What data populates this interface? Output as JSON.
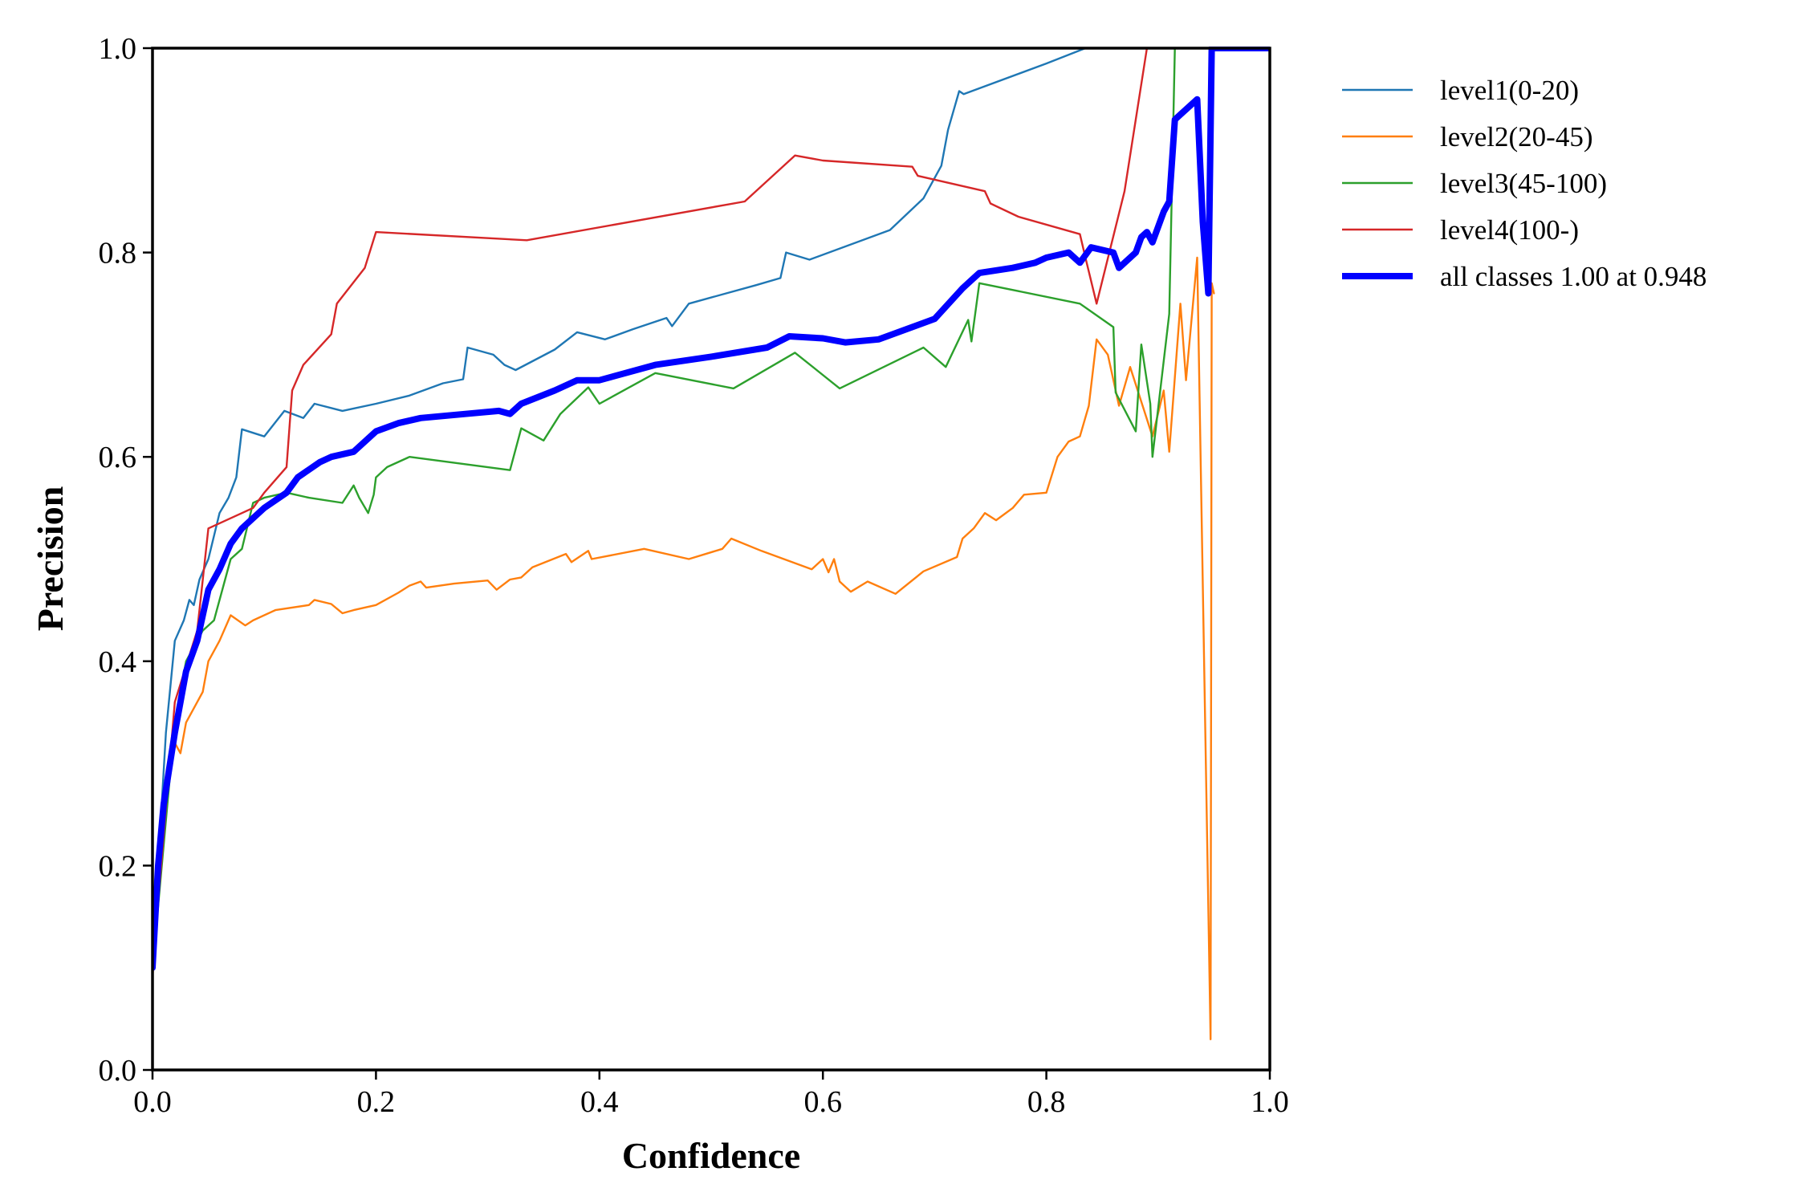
{
  "chart_data": {
    "type": "line",
    "title": "",
    "xlabel": "Confidence",
    "ylabel": "Precision",
    "xlim": [
      0,
      1
    ],
    "ylim": [
      0,
      1
    ],
    "xticks": [
      "0.0",
      "0.2",
      "0.4",
      "0.6",
      "0.8",
      "1.0"
    ],
    "yticks": [
      "0.0",
      "0.2",
      "0.4",
      "0.6",
      "0.8",
      "1.0"
    ],
    "grid": false,
    "legend_position": "outside-top-right",
    "series": [
      {
        "name": "level1(0-20)",
        "color": "#1f77b4",
        "width": "thin",
        "points": [
          [
            0.0,
            0.1
          ],
          [
            0.005,
            0.2
          ],
          [
            0.012,
            0.33
          ],
          [
            0.02,
            0.42
          ],
          [
            0.028,
            0.44
          ],
          [
            0.033,
            0.46
          ],
          [
            0.037,
            0.455
          ],
          [
            0.042,
            0.48
          ],
          [
            0.05,
            0.5
          ],
          [
            0.06,
            0.545
          ],
          [
            0.068,
            0.56
          ],
          [
            0.075,
            0.58
          ],
          [
            0.08,
            0.627
          ],
          [
            0.1,
            0.62
          ],
          [
            0.118,
            0.645
          ],
          [
            0.135,
            0.638
          ],
          [
            0.145,
            0.652
          ],
          [
            0.17,
            0.645
          ],
          [
            0.2,
            0.652
          ],
          [
            0.23,
            0.66
          ],
          [
            0.26,
            0.672
          ],
          [
            0.278,
            0.676
          ],
          [
            0.282,
            0.707
          ],
          [
            0.305,
            0.7
          ],
          [
            0.315,
            0.69
          ],
          [
            0.325,
            0.685
          ],
          [
            0.36,
            0.705
          ],
          [
            0.38,
            0.722
          ],
          [
            0.405,
            0.715
          ],
          [
            0.43,
            0.725
          ],
          [
            0.46,
            0.736
          ],
          [
            0.465,
            0.728
          ],
          [
            0.48,
            0.75
          ],
          [
            0.54,
            0.768
          ],
          [
            0.562,
            0.775
          ],
          [
            0.567,
            0.8
          ],
          [
            0.588,
            0.793
          ],
          [
            0.66,
            0.822
          ],
          [
            0.69,
            0.853
          ],
          [
            0.706,
            0.885
          ],
          [
            0.712,
            0.92
          ],
          [
            0.722,
            0.958
          ],
          [
            0.726,
            0.955
          ],
          [
            0.8,
            0.985
          ],
          [
            0.835,
            1.0
          ],
          [
            1.0,
            1.0
          ]
        ]
      },
      {
        "name": "level2(20-45)",
        "color": "#ff7f0e",
        "width": "thin",
        "points": [
          [
            0.0,
            0.09
          ],
          [
            0.005,
            0.18
          ],
          [
            0.01,
            0.26
          ],
          [
            0.02,
            0.32
          ],
          [
            0.025,
            0.31
          ],
          [
            0.03,
            0.34
          ],
          [
            0.04,
            0.36
          ],
          [
            0.045,
            0.37
          ],
          [
            0.05,
            0.4
          ],
          [
            0.06,
            0.42
          ],
          [
            0.07,
            0.445
          ],
          [
            0.083,
            0.435
          ],
          [
            0.09,
            0.44
          ],
          [
            0.11,
            0.45
          ],
          [
            0.14,
            0.455
          ],
          [
            0.145,
            0.46
          ],
          [
            0.16,
            0.456
          ],
          [
            0.17,
            0.447
          ],
          [
            0.18,
            0.45
          ],
          [
            0.2,
            0.455
          ],
          [
            0.22,
            0.467
          ],
          [
            0.23,
            0.474
          ],
          [
            0.24,
            0.478
          ],
          [
            0.245,
            0.472
          ],
          [
            0.27,
            0.476
          ],
          [
            0.3,
            0.479
          ],
          [
            0.308,
            0.47
          ],
          [
            0.32,
            0.48
          ],
          [
            0.33,
            0.482
          ],
          [
            0.34,
            0.492
          ],
          [
            0.37,
            0.505
          ],
          [
            0.375,
            0.497
          ],
          [
            0.39,
            0.508
          ],
          [
            0.393,
            0.5
          ],
          [
            0.44,
            0.51
          ],
          [
            0.48,
            0.5
          ],
          [
            0.51,
            0.51
          ],
          [
            0.518,
            0.52
          ],
          [
            0.545,
            0.508
          ],
          [
            0.59,
            0.49
          ],
          [
            0.6,
            0.5
          ],
          [
            0.605,
            0.487
          ],
          [
            0.61,
            0.5
          ],
          [
            0.615,
            0.478
          ],
          [
            0.625,
            0.468
          ],
          [
            0.64,
            0.478
          ],
          [
            0.665,
            0.466
          ],
          [
            0.69,
            0.488
          ],
          [
            0.72,
            0.502
          ],
          [
            0.725,
            0.52
          ],
          [
            0.735,
            0.53
          ],
          [
            0.745,
            0.545
          ],
          [
            0.755,
            0.538
          ],
          [
            0.77,
            0.55
          ],
          [
            0.78,
            0.563
          ],
          [
            0.8,
            0.565
          ],
          [
            0.81,
            0.6
          ],
          [
            0.82,
            0.615
          ],
          [
            0.83,
            0.62
          ],
          [
            0.838,
            0.65
          ],
          [
            0.845,
            0.715
          ],
          [
            0.855,
            0.7
          ],
          [
            0.865,
            0.65
          ],
          [
            0.875,
            0.688
          ],
          [
            0.895,
            0.62
          ],
          [
            0.905,
            0.665
          ],
          [
            0.91,
            0.605
          ],
          [
            0.92,
            0.75
          ],
          [
            0.925,
            0.675
          ],
          [
            0.935,
            0.795
          ],
          [
            0.947,
            0.03
          ],
          [
            0.948,
            0.77
          ],
          [
            0.95,
            0.76
          ]
        ]
      },
      {
        "name": "level3(45-100)",
        "color": "#2ca02c",
        "width": "thin",
        "points": [
          [
            0.0,
            0.1
          ],
          [
            0.02,
            0.34
          ],
          [
            0.03,
            0.4
          ],
          [
            0.045,
            0.43
          ],
          [
            0.055,
            0.44
          ],
          [
            0.07,
            0.5
          ],
          [
            0.08,
            0.51
          ],
          [
            0.09,
            0.555
          ],
          [
            0.1,
            0.56
          ],
          [
            0.12,
            0.565
          ],
          [
            0.14,
            0.56
          ],
          [
            0.17,
            0.555
          ],
          [
            0.18,
            0.572
          ],
          [
            0.185,
            0.56
          ],
          [
            0.193,
            0.545
          ],
          [
            0.198,
            0.563
          ],
          [
            0.2,
            0.58
          ],
          [
            0.21,
            0.59
          ],
          [
            0.23,
            0.6
          ],
          [
            0.32,
            0.587
          ],
          [
            0.33,
            0.628
          ],
          [
            0.35,
            0.616
          ],
          [
            0.365,
            0.642
          ],
          [
            0.39,
            0.668
          ],
          [
            0.4,
            0.652
          ],
          [
            0.45,
            0.682
          ],
          [
            0.52,
            0.667
          ],
          [
            0.575,
            0.702
          ],
          [
            0.615,
            0.667
          ],
          [
            0.69,
            0.707
          ],
          [
            0.71,
            0.688
          ],
          [
            0.73,
            0.734
          ],
          [
            0.733,
            0.713
          ],
          [
            0.74,
            0.77
          ],
          [
            0.83,
            0.75
          ],
          [
            0.86,
            0.727
          ],
          [
            0.862,
            0.663
          ],
          [
            0.88,
            0.625
          ],
          [
            0.885,
            0.71
          ],
          [
            0.893,
            0.652
          ],
          [
            0.895,
            0.6
          ],
          [
            0.91,
            0.74
          ],
          [
            0.915,
            1.0
          ]
        ]
      },
      {
        "name": "level4(100-)",
        "color": "#d62728",
        "width": "thin",
        "points": [
          [
            0.0,
            0.1
          ],
          [
            0.02,
            0.36
          ],
          [
            0.04,
            0.43
          ],
          [
            0.05,
            0.53
          ],
          [
            0.08,
            0.545
          ],
          [
            0.09,
            0.55
          ],
          [
            0.1,
            0.565
          ],
          [
            0.12,
            0.59
          ],
          [
            0.125,
            0.665
          ],
          [
            0.135,
            0.69
          ],
          [
            0.16,
            0.72
          ],
          [
            0.165,
            0.75
          ],
          [
            0.19,
            0.785
          ],
          [
            0.2,
            0.82
          ],
          [
            0.335,
            0.812
          ],
          [
            0.53,
            0.85
          ],
          [
            0.575,
            0.895
          ],
          [
            0.6,
            0.89
          ],
          [
            0.68,
            0.884
          ],
          [
            0.685,
            0.875
          ],
          [
            0.745,
            0.86
          ],
          [
            0.75,
            0.848
          ],
          [
            0.775,
            0.835
          ],
          [
            0.83,
            0.818
          ],
          [
            0.835,
            0.795
          ],
          [
            0.845,
            0.75
          ],
          [
            0.87,
            0.86
          ],
          [
            0.89,
            1.0
          ]
        ]
      },
      {
        "name": "all classes 1.00 at 0.948",
        "color": "#0000ff",
        "width": "thick",
        "points": [
          [
            0.0,
            0.1
          ],
          [
            0.005,
            0.2
          ],
          [
            0.01,
            0.26
          ],
          [
            0.02,
            0.33
          ],
          [
            0.03,
            0.39
          ],
          [
            0.04,
            0.42
          ],
          [
            0.05,
            0.47
          ],
          [
            0.06,
            0.49
          ],
          [
            0.07,
            0.515
          ],
          [
            0.08,
            0.53
          ],
          [
            0.09,
            0.54
          ],
          [
            0.1,
            0.55
          ],
          [
            0.12,
            0.565
          ],
          [
            0.13,
            0.58
          ],
          [
            0.15,
            0.595
          ],
          [
            0.16,
            0.6
          ],
          [
            0.18,
            0.605
          ],
          [
            0.2,
            0.625
          ],
          [
            0.22,
            0.633
          ],
          [
            0.24,
            0.638
          ],
          [
            0.28,
            0.642
          ],
          [
            0.31,
            0.645
          ],
          [
            0.32,
            0.642
          ],
          [
            0.33,
            0.652
          ],
          [
            0.36,
            0.665
          ],
          [
            0.38,
            0.675
          ],
          [
            0.4,
            0.675
          ],
          [
            0.45,
            0.69
          ],
          [
            0.5,
            0.698
          ],
          [
            0.55,
            0.707
          ],
          [
            0.57,
            0.718
          ],
          [
            0.6,
            0.716
          ],
          [
            0.62,
            0.712
          ],
          [
            0.65,
            0.715
          ],
          [
            0.7,
            0.735
          ],
          [
            0.725,
            0.765
          ],
          [
            0.735,
            0.775
          ],
          [
            0.74,
            0.78
          ],
          [
            0.77,
            0.785
          ],
          [
            0.79,
            0.79
          ],
          [
            0.8,
            0.795
          ],
          [
            0.82,
            0.8
          ],
          [
            0.83,
            0.79
          ],
          [
            0.84,
            0.805
          ],
          [
            0.86,
            0.8
          ],
          [
            0.865,
            0.785
          ],
          [
            0.88,
            0.8
          ],
          [
            0.885,
            0.815
          ],
          [
            0.89,
            0.82
          ],
          [
            0.895,
            0.81
          ],
          [
            0.905,
            0.84
          ],
          [
            0.91,
            0.85
          ],
          [
            0.915,
            0.93
          ],
          [
            0.92,
            0.935
          ],
          [
            0.93,
            0.945
          ],
          [
            0.935,
            0.95
          ],
          [
            0.94,
            0.83
          ],
          [
            0.945,
            0.76
          ],
          [
            0.948,
            1.0
          ],
          [
            1.0,
            1.0
          ]
        ]
      }
    ]
  }
}
